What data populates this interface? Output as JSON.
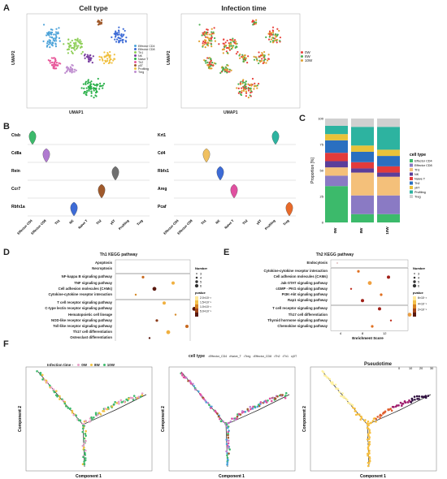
{
  "panel_labels": {
    "A": "A",
    "B": "B",
    "C": "C",
    "D": "D",
    "E": "E",
    "F": "F"
  },
  "panel_a": {
    "left_title": "Cell type",
    "right_title": "Infection time",
    "xlabel": "UMAP1",
    "ylabel": "UMAP2",
    "cell_types": [
      "Effector CD4",
      "Effector CD8",
      "Th1",
      "NK",
      "Naive T",
      "Th2",
      "γδT",
      "Profiling",
      "Treg"
    ],
    "cell_colors": [
      "#4da3d9",
      "#3d6bd6",
      "#8fcf5a",
      "#7a3fa0",
      "#2bb04a",
      "#e85a9b",
      "#a05a2c",
      "#f0c040",
      "#c08fd0"
    ],
    "times": [
      "0W",
      "8W",
      "10W"
    ],
    "time_colors": [
      "#e8413b",
      "#4caf50",
      "#e0a030"
    ]
  },
  "panel_b": {
    "left_genes": [
      "Ctsb",
      "Cd8a",
      "Rein",
      "Ccr7",
      "Rbfx1a"
    ],
    "right_genes": [
      "Krt1",
      "Cd4",
      "Rbfx1",
      "Areg",
      "Pcaf"
    ],
    "clusters": [
      "Effector CD4",
      "Effector CD8",
      "Th1",
      "NK",
      "Naive T",
      "Th2",
      "γδT",
      "Profiling",
      "Treg"
    ]
  },
  "chart_data": [
    {
      "type": "bar",
      "panel": "C",
      "categories": [
        "0W",
        "8W",
        "10W"
      ],
      "ylabel": "Proportion [%]",
      "ylim": [
        0,
        100
      ],
      "legend_title": "cell type",
      "series": [
        {
          "name": "Effector CD4",
          "color": "#3cba6b",
          "values": [
            35,
            8,
            8
          ]
        },
        {
          "name": "Effector CD8",
          "color": "#8a7ac4",
          "values": [
            10,
            18,
            18
          ]
        },
        {
          "name": "Th1",
          "color": "#f4c07a",
          "values": [
            8,
            22,
            18
          ]
        },
        {
          "name": "NK",
          "color": "#5b3e9a",
          "values": [
            6,
            4,
            4
          ]
        },
        {
          "name": "Naive T",
          "color": "#e23b3b",
          "values": [
            8,
            6,
            6
          ]
        },
        {
          "name": "Th2",
          "color": "#2a6fc0",
          "values": [
            12,
            10,
            10
          ]
        },
        {
          "name": "γδT",
          "color": "#e8c23a",
          "values": [
            6,
            6,
            6
          ]
        },
        {
          "name": "Profiling",
          "color": "#2db3a0",
          "values": [
            8,
            18,
            22
          ]
        },
        {
          "name": "Treg",
          "color": "#d0d0d0",
          "values": [
            7,
            8,
            8
          ]
        }
      ],
      "yticks": [
        "0",
        "25",
        "50",
        "75",
        "100"
      ]
    },
    {
      "type": "scatter",
      "panel": "D",
      "title": "Th1 KEGG pathway",
      "xlabel": "Enrichment Score",
      "groups": [
        {
          "terms": [
            "Apoptosis",
            "Necroptosis"
          ]
        },
        {
          "terms": [
            "NF-kappa B signaling pathway",
            "TNF signaling pathway",
            "Cell adhesion molecules (CAMs)",
            "Cytokine-cytokine receptor interaction"
          ]
        },
        {
          "terms": [
            "T cell receptor signaling pathway",
            "C-type lectin receptor signaling pathway",
            "Hematopoietic cell lineage",
            "NOD-like receptor signaling pathway",
            "Toll-like receptor signaling pathway",
            "Th17 cell differentiation",
            "Osteoclast differentiation"
          ]
        }
      ],
      "legend_number_title": "Number",
      "legend_number": [
        "3",
        "4",
        "5",
        "6"
      ],
      "legend_p_title": "pvalue",
      "legend_p": [
        "2.0×10⁻²",
        "1.5×10⁻²",
        "1.0×10⁻²",
        "5.0×10⁻³"
      ],
      "xticks": [
        "8",
        "10",
        "12"
      ]
    },
    {
      "type": "scatter",
      "panel": "E",
      "title": "Th2 KEGG pathway",
      "xlabel": "Enrichment Score",
      "groups": [
        {
          "terms": [
            "Endocytosis"
          ]
        },
        {
          "terms": [
            "Cytokine-cytokine receptor interaction",
            "Cell adhesion molecules (CAMs)",
            "Jak-STAT signaling pathway",
            "cGMP - PKG signaling pathway",
            "PI3K-Akt signaling pathway",
            "Rap1 signaling pathway"
          ]
        },
        {
          "terms": [
            "T cell receptor signaling pathway",
            "Th17 cell differentiation",
            "Thyroid hormone signaling pathway",
            "Chemokine signaling pathway"
          ]
        }
      ],
      "legend_number_title": "Number",
      "legend_number": [
        "3",
        "4",
        "5",
        "6"
      ],
      "legend_p_title": "pvalue",
      "legend_p": [
        "6×10⁻²",
        "4×10⁻²",
        "2×10⁻²"
      ],
      "xticks": [
        "4",
        "8",
        "12"
      ]
    }
  ],
  "panel_f": {
    "left_legend_title": "Infection time",
    "left_legend_items": [
      "0W",
      "8W",
      "10W"
    ],
    "left_legend_colors": [
      "#e8a0c8",
      "#f0c040",
      "#3cba6b"
    ],
    "mid_legend_title": "cell type",
    "mid_legend_items": [
      "Effector_CD4",
      "Naive_T",
      "Treg",
      "Effector_CD8",
      "Th2",
      "Th1",
      "γδT"
    ],
    "right_legend_title": "Pseudotime",
    "right_legend_ticks": [
      "0",
      "10",
      "20",
      "30"
    ],
    "xlabel": "Component 1",
    "ylabel": "Component 2"
  }
}
